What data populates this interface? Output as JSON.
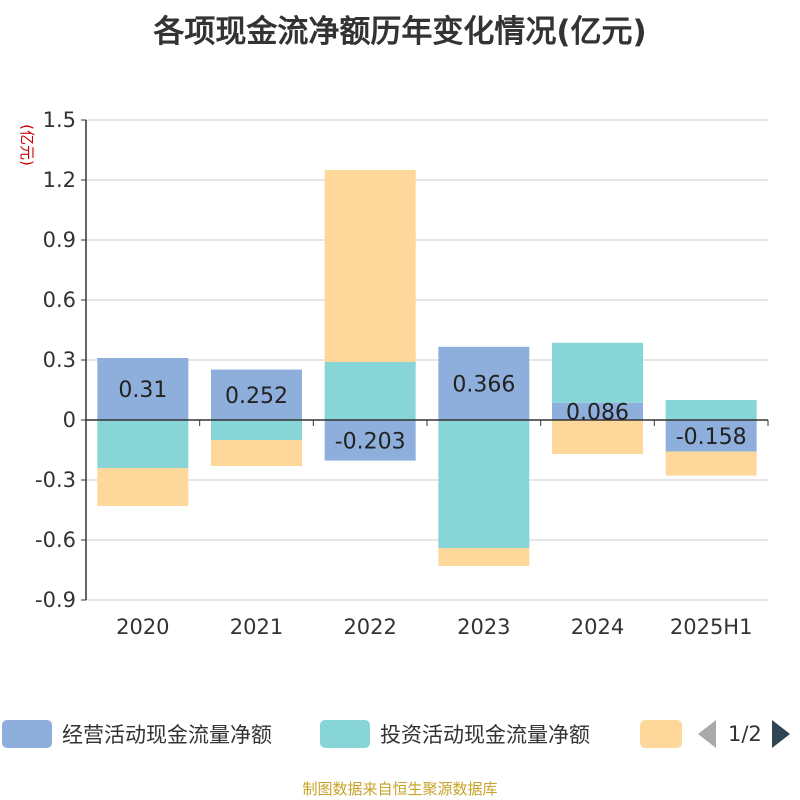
{
  "title": "各项现金流净额历年变化情况(亿元)",
  "source": "制图数据来自恒生聚源数据库",
  "legend_pager": "1/2",
  "chart_data": {
    "type": "bar",
    "stacked": true,
    "categories": [
      "2020",
      "2021",
      "2022",
      "2023",
      "2024",
      "2025H1"
    ],
    "ylabel": "(亿元)",
    "ylim": [
      -0.9,
      1.5
    ],
    "yticks": [
      "1.5",
      "1.2",
      "0.9",
      "0.6",
      "0.3",
      "0",
      "-0.3",
      "-0.6",
      "-0.9"
    ],
    "grid": true,
    "legend_position": "bottom",
    "series": [
      {
        "name": "经营活动现金流量净额",
        "color": "#8eaedc",
        "values": [
          0.31,
          0.252,
          -0.203,
          0.366,
          0.086,
          -0.158
        ],
        "labels": [
          "0.31",
          "0.252",
          "-0.203",
          "0.366",
          "0.086",
          "-0.158"
        ]
      },
      {
        "name": "投资活动现金流量净额",
        "color": "#87d5d7",
        "values": [
          -0.24,
          -0.1,
          0.29,
          -0.64,
          0.3,
          0.1
        ]
      },
      {
        "name": "",
        "color": "#fdd89a",
        "values": [
          -0.19,
          -0.13,
          0.96,
          -0.09,
          -0.17,
          -0.12
        ]
      }
    ]
  }
}
